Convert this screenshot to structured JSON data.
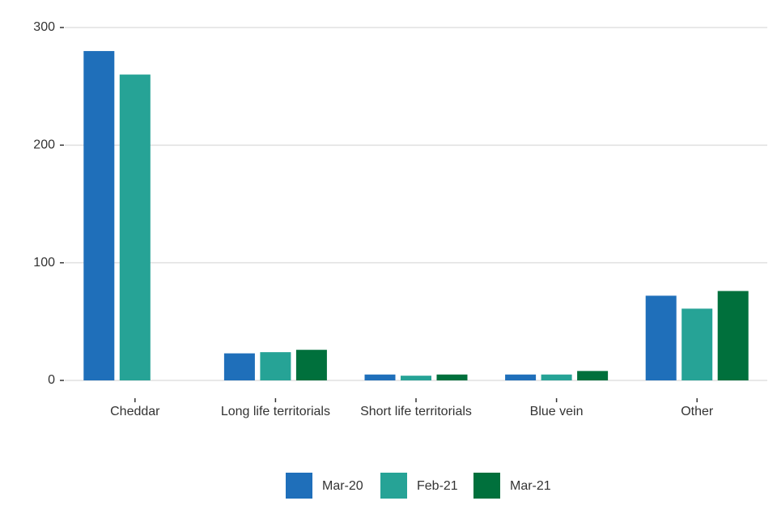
{
  "chart_data": {
    "type": "bar",
    "categories": [
      "Cheddar",
      "Long life territorials",
      "Short life territorials",
      "Blue vein",
      "Other"
    ],
    "series": [
      {
        "name": "Mar-20",
        "color": "#1f6fba",
        "values": [
          280,
          23,
          5,
          5,
          72
        ]
      },
      {
        "name": "Feb-21",
        "color": "#26a396",
        "values": [
          260,
          24,
          4,
          5,
          61
        ]
      },
      {
        "name": "Mar-21",
        "color": "#00703c",
        "values": [
          null,
          26,
          5,
          8,
          76
        ]
      }
    ],
    "ylim": [
      0,
      300
    ],
    "yticks": [
      0,
      100,
      200,
      300
    ],
    "grid": true,
    "legend": "bottom"
  }
}
